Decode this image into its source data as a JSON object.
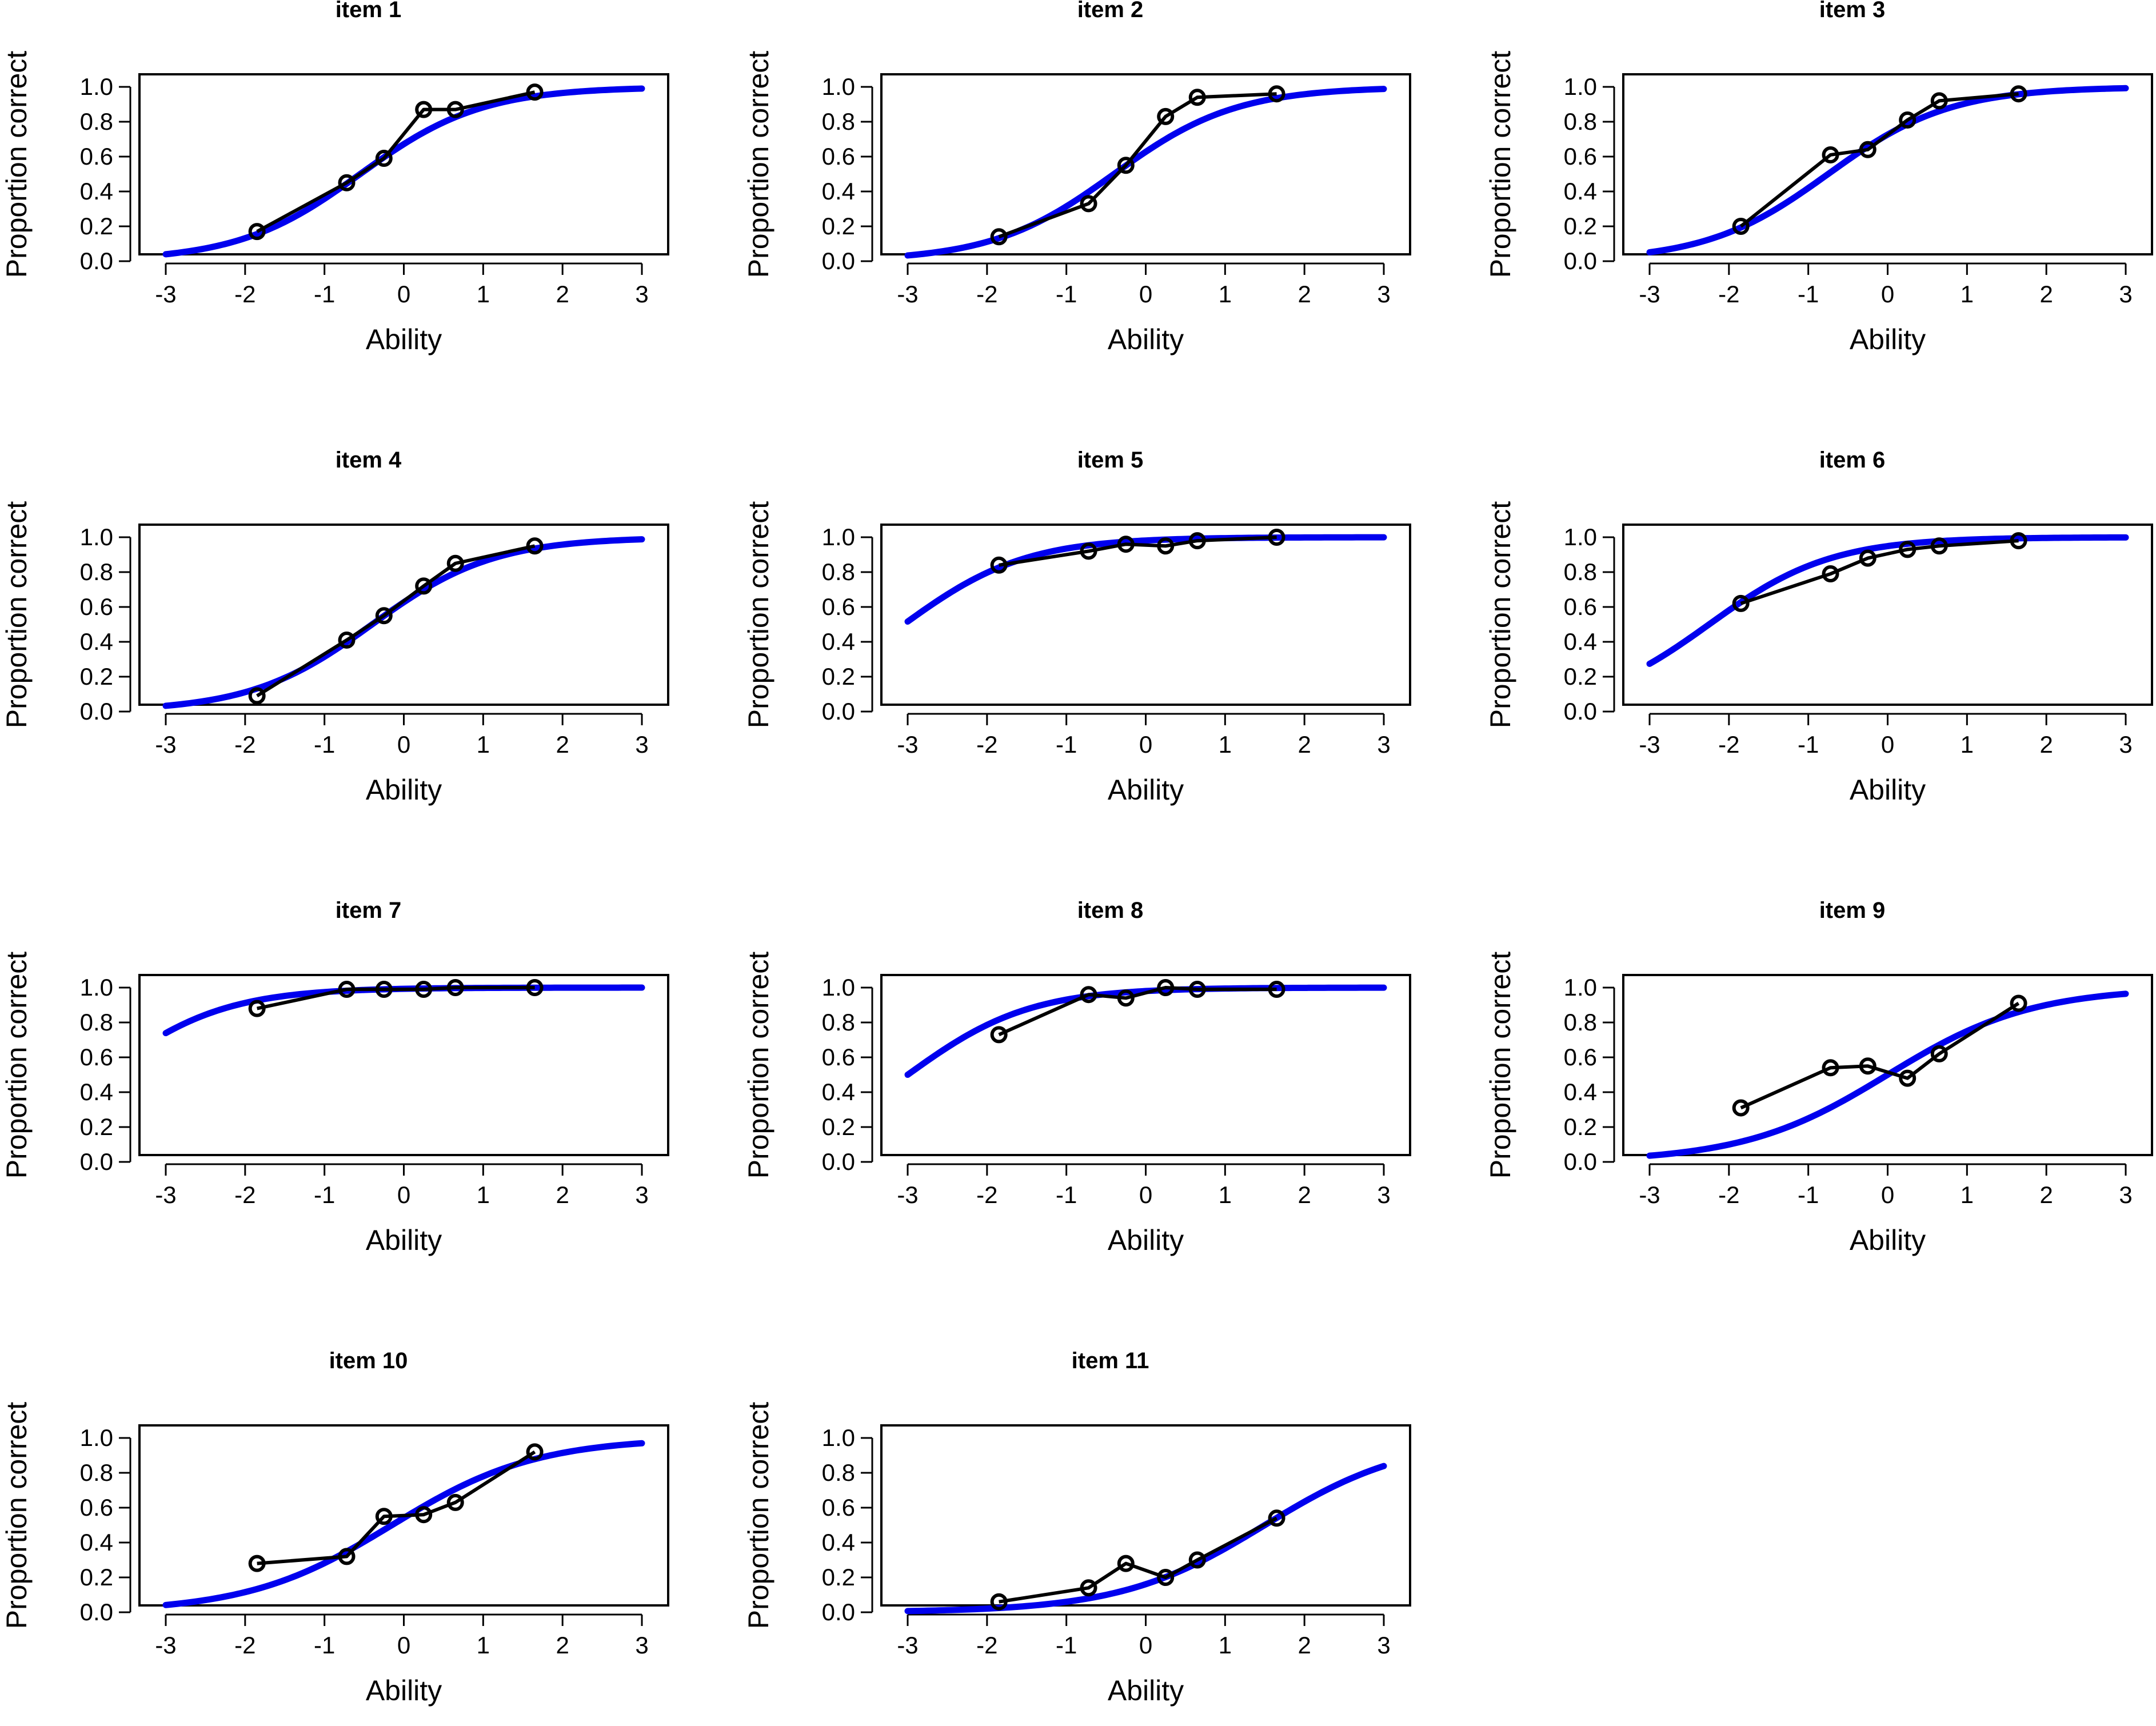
{
  "colors": {
    "fit_curve": "#0000ee",
    "observed": "#000000",
    "axis": "#000000",
    "background": "#ffffff"
  },
  "chart_data": [
    {
      "type": "line",
      "title": "item 1",
      "xlabel": "Ability",
      "ylabel": "Proportion correct",
      "xlim": [
        -3,
        3
      ],
      "ylim": [
        0,
        1
      ],
      "xticks": [
        "-3",
        "-2",
        "-1",
        "0",
        "1",
        "2",
        "3"
      ],
      "yticks": [
        "0.0",
        "0.2",
        "0.4",
        "0.6",
        "0.8",
        "1.0"
      ],
      "model_curve": {
        "name": "fitted ICC",
        "a": 1.3,
        "b": -0.55
      },
      "observed": {
        "name": "observed proportion",
        "x": [
          -1.85,
          -0.72,
          -0.25,
          0.25,
          0.65,
          1.65
        ],
        "y": [
          0.17,
          0.45,
          0.59,
          0.87,
          0.87,
          0.97
        ]
      }
    },
    {
      "type": "line",
      "title": "item 2",
      "xlabel": "Ability",
      "ylabel": "Proportion correct",
      "xlim": [
        -3,
        3
      ],
      "ylim": [
        0,
        1
      ],
      "xticks": [
        "-3",
        "-2",
        "-1",
        "0",
        "1",
        "2",
        "3"
      ],
      "yticks": [
        "0.0",
        "0.2",
        "0.4",
        "0.6",
        "0.8",
        "1.0"
      ],
      "model_curve": {
        "name": "fitted ICC",
        "a": 1.3,
        "b": -0.4
      },
      "observed": {
        "name": "observed proportion",
        "x": [
          -1.85,
          -0.72,
          -0.25,
          0.25,
          0.65,
          1.65
        ],
        "y": [
          0.14,
          0.33,
          0.55,
          0.83,
          0.94,
          0.96
        ]
      }
    },
    {
      "type": "line",
      "title": "item 3",
      "xlabel": "Ability",
      "ylabel": "Proportion correct",
      "xlim": [
        -3,
        3
      ],
      "ylim": [
        0,
        1
      ],
      "xticks": [
        "-3",
        "-2",
        "-1",
        "0",
        "1",
        "2",
        "3"
      ],
      "yticks": [
        "0.0",
        "0.2",
        "0.4",
        "0.6",
        "0.8",
        "1.0"
      ],
      "model_curve": {
        "name": "fitted ICC",
        "a": 1.3,
        "b": -0.75
      },
      "observed": {
        "name": "observed proportion",
        "x": [
          -1.85,
          -0.72,
          -0.25,
          0.25,
          0.65,
          1.65
        ],
        "y": [
          0.2,
          0.61,
          0.64,
          0.81,
          0.92,
          0.96
        ]
      }
    },
    {
      "type": "line",
      "title": "item 4",
      "xlabel": "Ability",
      "ylabel": "Proportion correct",
      "xlim": [
        -3,
        3
      ],
      "ylim": [
        0,
        1
      ],
      "xticks": [
        "-3",
        "-2",
        "-1",
        "0",
        "1",
        "2",
        "3"
      ],
      "yticks": [
        "0.0",
        "0.2",
        "0.4",
        "0.6",
        "0.8",
        "1.0"
      ],
      "model_curve": {
        "name": "fitted ICC",
        "a": 1.3,
        "b": -0.4
      },
      "observed": {
        "name": "observed proportion",
        "x": [
          -1.85,
          -0.72,
          -0.25,
          0.25,
          0.65,
          1.65
        ],
        "y": [
          0.09,
          0.41,
          0.55,
          0.72,
          0.85,
          0.95
        ]
      }
    },
    {
      "type": "line",
      "title": "item 5",
      "xlabel": "Ability",
      "ylabel": "Proportion correct",
      "xlim": [
        -3,
        3
      ],
      "ylim": [
        0,
        1
      ],
      "xticks": [
        "-3",
        "-2",
        "-1",
        "0",
        "1",
        "2",
        "3"
      ],
      "yticks": [
        "0.0",
        "0.2",
        "0.4",
        "0.6",
        "0.8",
        "1.0"
      ],
      "model_curve": {
        "name": "fitted ICC",
        "a": 1.3,
        "b": -3.05
      },
      "observed": {
        "name": "observed proportion",
        "x": [
          -1.85,
          -0.72,
          -0.25,
          0.25,
          0.65,
          1.65
        ],
        "y": [
          0.84,
          0.92,
          0.96,
          0.95,
          0.98,
          1.0
        ]
      }
    },
    {
      "type": "line",
      "title": "item 6",
      "xlabel": "Ability",
      "ylabel": "Proportion correct",
      "xlim": [
        -3,
        3
      ],
      "ylim": [
        0,
        1
      ],
      "xticks": [
        "-3",
        "-2",
        "-1",
        "0",
        "1",
        "2",
        "3"
      ],
      "yticks": [
        "0.0",
        "0.2",
        "0.4",
        "0.6",
        "0.8",
        "1.0"
      ],
      "model_curve": {
        "name": "fitted ICC",
        "a": 1.3,
        "b": -2.25
      },
      "observed": {
        "name": "observed proportion",
        "x": [
          -1.85,
          -0.72,
          -0.25,
          0.25,
          0.65,
          1.65
        ],
        "y": [
          0.62,
          0.79,
          0.88,
          0.93,
          0.95,
          0.98
        ]
      }
    },
    {
      "type": "line",
      "title": "item 7",
      "xlabel": "Ability",
      "ylabel": "Proportion correct",
      "xlim": [
        -3,
        3
      ],
      "ylim": [
        0,
        1
      ],
      "xticks": [
        "-3",
        "-2",
        "-1",
        "0",
        "1",
        "2",
        "3"
      ],
      "yticks": [
        "0.0",
        "0.2",
        "0.4",
        "0.6",
        "0.8",
        "1.0"
      ],
      "model_curve": {
        "name": "fitted ICC",
        "a": 1.3,
        "b": -3.8
      },
      "observed": {
        "name": "observed proportion",
        "x": [
          -1.85,
          -0.72,
          -0.25,
          0.25,
          0.65,
          1.65
        ],
        "y": [
          0.88,
          0.99,
          0.99,
          0.99,
          1.0,
          1.0
        ]
      }
    },
    {
      "type": "line",
      "title": "item 8",
      "xlabel": "Ability",
      "ylabel": "Proportion correct",
      "xlim": [
        -3,
        3
      ],
      "ylim": [
        0,
        1
      ],
      "xticks": [
        "-3",
        "-2",
        "-1",
        "0",
        "1",
        "2",
        "3"
      ],
      "yticks": [
        "0.0",
        "0.2",
        "0.4",
        "0.6",
        "0.8",
        "1.0"
      ],
      "model_curve": {
        "name": "fitted ICC",
        "a": 1.3,
        "b": -3.0
      },
      "observed": {
        "name": "observed proportion",
        "x": [
          -1.85,
          -0.72,
          -0.25,
          0.25,
          0.65,
          1.65
        ],
        "y": [
          0.73,
          0.96,
          0.94,
          1.0,
          0.99,
          0.99
        ]
      }
    },
    {
      "type": "line",
      "title": "item 9",
      "xlabel": "Ability",
      "ylabel": "Proportion correct",
      "xlim": [
        -3,
        3
      ],
      "ylim": [
        0,
        1
      ],
      "xticks": [
        "-3",
        "-2",
        "-1",
        "0",
        "1",
        "2",
        "3"
      ],
      "yticks": [
        "0.0",
        "0.2",
        "0.4",
        "0.6",
        "0.8",
        "1.0"
      ],
      "model_curve": {
        "name": "fitted ICC",
        "a": 1.1,
        "b": 0.0
      },
      "observed": {
        "name": "observed proportion",
        "x": [
          -1.85,
          -0.72,
          -0.25,
          0.25,
          0.65,
          1.65
        ],
        "y": [
          0.31,
          0.54,
          0.55,
          0.48,
          0.62,
          0.91
        ]
      }
    },
    {
      "type": "line",
      "title": "item 10",
      "xlabel": "Ability",
      "ylabel": "Proportion correct",
      "xlim": [
        -3,
        3
      ],
      "ylim": [
        0,
        1
      ],
      "xticks": [
        "-3",
        "-2",
        "-1",
        "0",
        "1",
        "2",
        "3"
      ],
      "yticks": [
        "0.0",
        "0.2",
        "0.4",
        "0.6",
        "0.8",
        "1.0"
      ],
      "model_curve": {
        "name": "fitted ICC",
        "a": 1.1,
        "b": -0.15
      },
      "observed": {
        "name": "observed proportion",
        "x": [
          -1.85,
          -0.72,
          -0.25,
          0.25,
          0.65,
          1.65
        ],
        "y": [
          0.28,
          0.32,
          0.55,
          0.56,
          0.63,
          0.92
        ]
      }
    },
    {
      "type": "line",
      "title": "item 11",
      "xlabel": "Ability",
      "ylabel": "Proportion correct",
      "xlim": [
        -3,
        3
      ],
      "ylim": [
        0,
        1
      ],
      "xticks": [
        "-3",
        "-2",
        "-1",
        "0",
        "1",
        "2",
        "3"
      ],
      "yticks": [
        "0.0",
        "0.2",
        "0.4",
        "0.6",
        "0.8",
        "1.0"
      ],
      "model_curve": {
        "name": "fitted ICC",
        "a": 1.1,
        "b": 1.5
      },
      "observed": {
        "name": "observed proportion",
        "x": [
          -1.85,
          -0.72,
          -0.25,
          0.25,
          0.65,
          1.65
        ],
        "y": [
          0.06,
          0.14,
          0.28,
          0.2,
          0.3,
          0.54
        ]
      }
    }
  ]
}
